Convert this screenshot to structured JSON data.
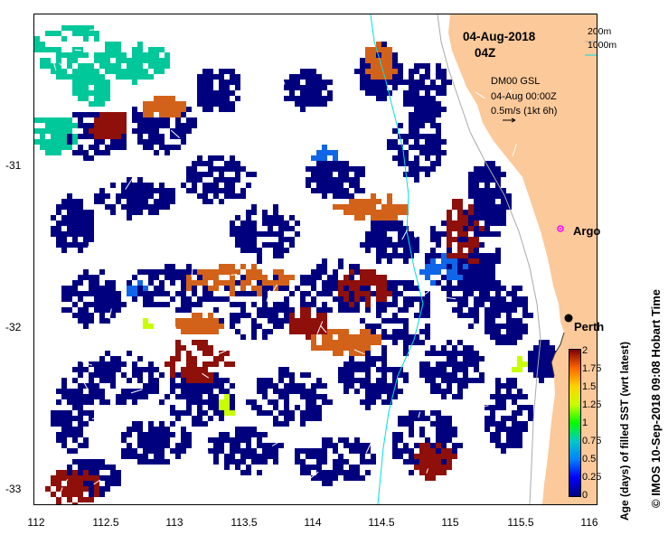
{
  "map": {
    "date": "04-Aug-2018",
    "time": "04Z",
    "legend_200m": "200m",
    "legend_1000m": "1000m",
    "drifter_label": "DM00 GSL",
    "drifter_time": "04-Aug 00:00Z",
    "vector_scale": "0.5m/s (1kt 6h)",
    "places": {
      "argo": "Argo",
      "perth": "Perth"
    },
    "lon_ticks": [
      "112",
      "112.5",
      "113",
      "113.5",
      "114",
      "114.5",
      "115",
      "115.5",
      "116"
    ],
    "lat_ticks": [
      "-31",
      "-32",
      "-33"
    ],
    "colorbar": {
      "title": "Age (days) of filled SST (wrt latest)",
      "ticks": [
        "2",
        "1.75",
        "1.5",
        "1.25",
        "1",
        "0.75",
        "0.5",
        "0.25",
        "0"
      ]
    },
    "credit": "© IMOS 10-Sep-2018 09:08 Hobart Time",
    "colors": {
      "land": "#fbc99a",
      "navy": "#00007f",
      "orange": "#d2621a",
      "darkred": "#8f0f0a",
      "teal": "#00c89b",
      "blue": "#1066e8",
      "isobath200": "#aaaaaa",
      "isobath1000": "#00e0e0",
      "argo": "#ff00ff"
    }
  }
}
